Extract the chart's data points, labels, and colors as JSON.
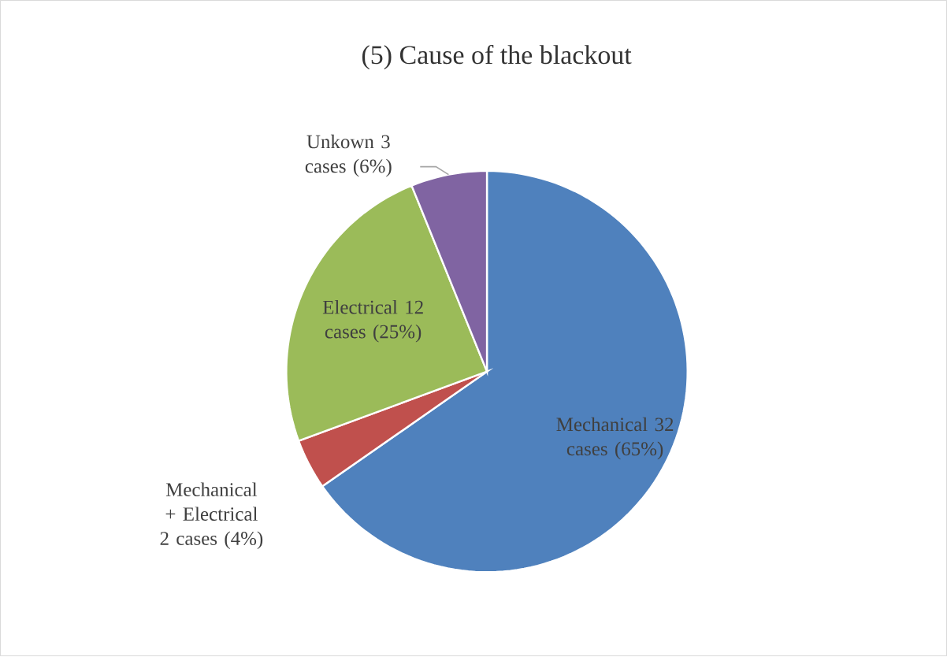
{
  "chart_data": {
    "type": "pie",
    "title": "(5) Cause of the blackout",
    "categories": [
      "Mechanical 32 cases (65%)",
      "Mechanical + Electrical 2 cases (4%)",
      "Electrical 12 cases (25%)",
      "Unkown 3 cases (6%)"
    ],
    "values": [
      32,
      2,
      12,
      3
    ],
    "colors": [
      "#4f81bd",
      "#c0504d",
      "#9bbb59",
      "#8064a2"
    ],
    "legend": false
  }
}
